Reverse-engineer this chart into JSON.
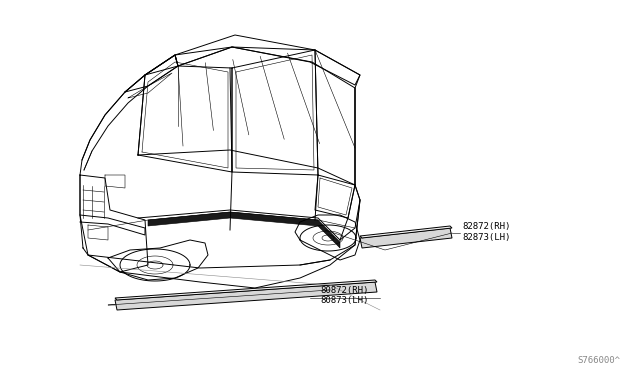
{
  "bg_color": "#ffffff",
  "line_color": "#000000",
  "text_color": "#000000",
  "diagram_code": "S766000^",
  "label_82872": "82872(RH)",
  "label_82873": "82873(LH)",
  "label_80872": "80872(RH)",
  "label_80873": "80873(LH)",
  "font_size_label": 6.5,
  "font_size_code": 6.5,
  "lw_main": 0.7,
  "lw_thin": 0.4
}
